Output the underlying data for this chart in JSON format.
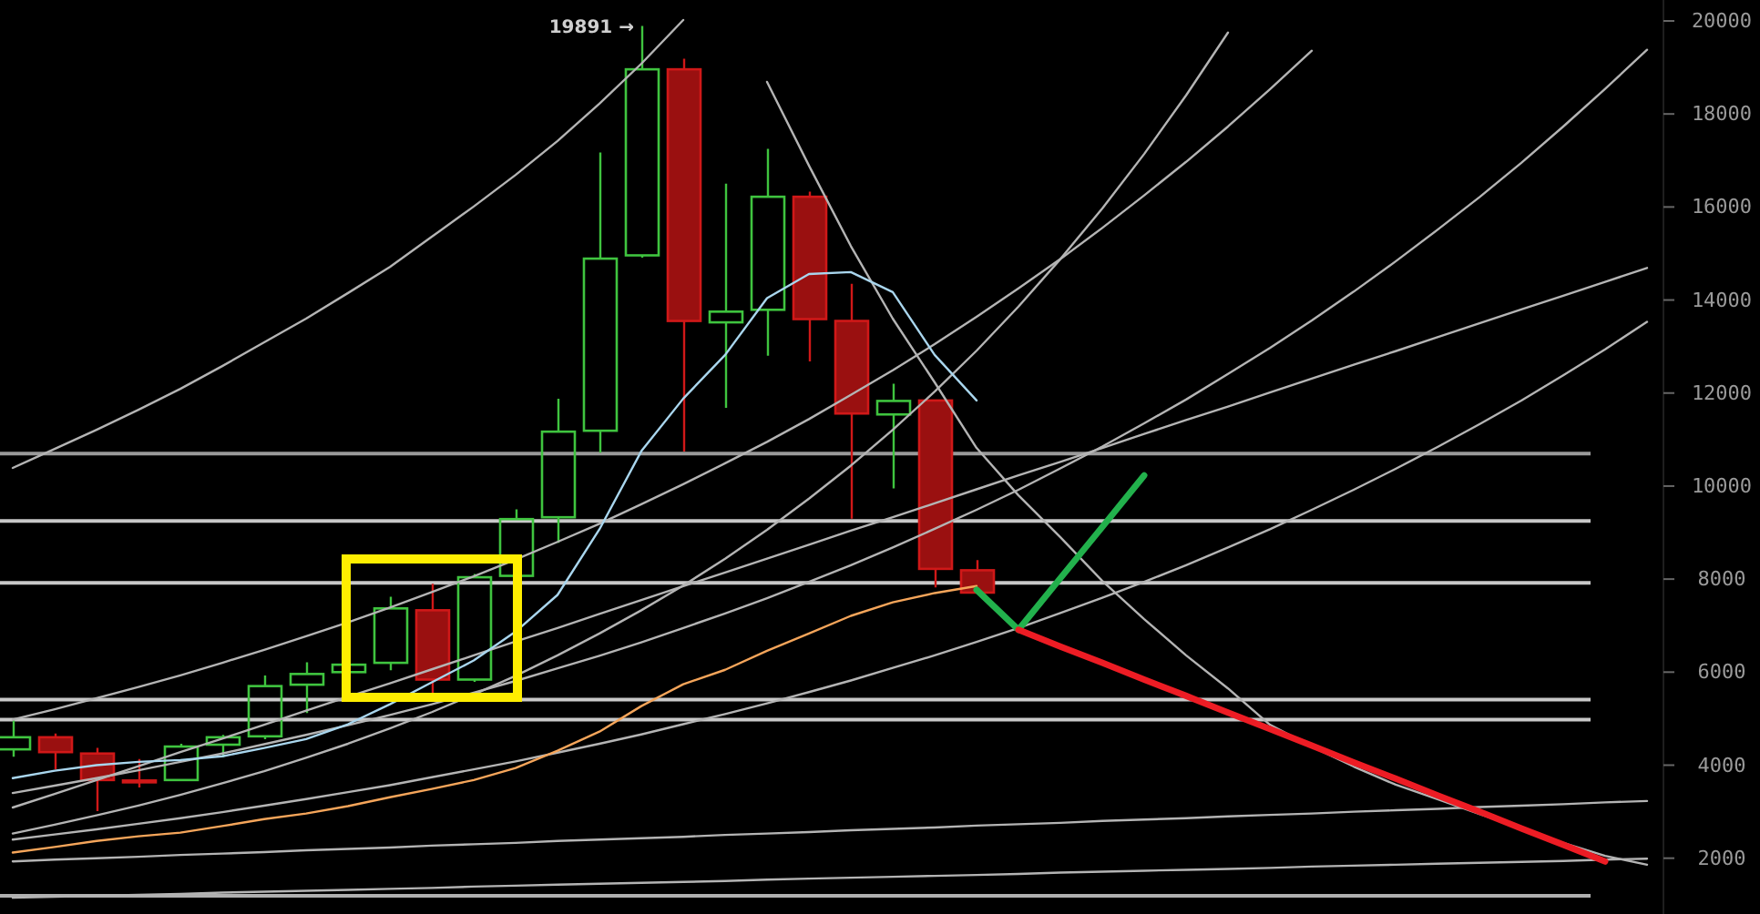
{
  "chart_data": {
    "type": "candlestick",
    "categories": [
      null,
      null,
      null,
      null,
      null,
      null,
      null,
      null,
      null,
      null,
      null,
      null,
      null,
      null,
      null,
      null,
      null,
      null,
      null,
      null,
      null,
      null,
      null,
      null,
      null,
      null,
      null,
      null,
      null,
      null,
      null,
      null,
      null,
      null,
      null,
      null,
      null,
      null,
      null,
      null
    ],
    "ohlc": [
      [
        4340,
        4960,
        4180,
        4600
      ],
      [
        4600,
        4680,
        3910,
        4280
      ],
      [
        4250,
        4370,
        3010,
        3680
      ],
      [
        3670,
        4130,
        3520,
        3650
      ],
      [
        3680,
        4460,
        3660,
        4400
      ],
      [
        4440,
        4650,
        4170,
        4600
      ],
      [
        4620,
        5930,
        4560,
        5700
      ],
      [
        5730,
        6210,
        5120,
        5960
      ],
      [
        6000,
        6170,
        5990,
        6160
      ],
      [
        6200,
        7620,
        6040,
        7370
      ],
      [
        7330,
        7900,
        5520,
        5840
      ],
      [
        5840,
        8110,
        5790,
        8040
      ],
      [
        8070,
        9500,
        8050,
        9290
      ],
      [
        9330,
        11880,
        8780,
        11170
      ],
      [
        11190,
        17170,
        10720,
        14890
      ],
      [
        14960,
        19891,
        14910,
        18960
      ],
      [
        18960,
        19190,
        10740,
        13550
      ],
      [
        13520,
        16500,
        11680,
        13750
      ],
      [
        13790,
        17250,
        12800,
        16220
      ],
      [
        16220,
        16330,
        12680,
        13590
      ],
      [
        13550,
        14350,
        9300,
        11560
      ],
      [
        11540,
        12200,
        9950,
        11830
      ],
      [
        11840,
        11860,
        7820,
        8220
      ],
      [
        8190,
        8410,
        7700,
        7710
      ],
      null,
      null,
      null,
      null,
      null,
      null,
      null,
      null,
      null,
      null,
      null,
      null,
      null,
      null,
      null,
      null
    ],
    "series": [
      {
        "type": "line",
        "color": "#b4b4b4",
        "values": [
          10390,
          10800,
          11210,
          11640,
          12090,
          12580,
          13090,
          13600,
          14150,
          14710,
          15360,
          16010,
          16690,
          17420,
          18220,
          19080,
          20020,
          null,
          null,
          null,
          null,
          null,
          null,
          null,
          null,
          null,
          null,
          null,
          null,
          null,
          null,
          null,
          null,
          null,
          null,
          null,
          null,
          null,
          null,
          null
        ]
      },
      {
        "type": "line",
        "color": "#b4b4b4",
        "values": [
          null,
          null,
          null,
          null,
          null,
          null,
          null,
          null,
          null,
          null,
          null,
          null,
          null,
          null,
          null,
          null,
          null,
          null,
          18690,
          16890,
          15160,
          13600,
          12230,
          10820,
          9800,
          8900,
          7960,
          7140,
          6360,
          5650,
          4870,
          4400,
          3970,
          3580,
          3270,
          2950,
          2640,
          2330,
          2050,
          1860
        ]
      },
      {
        "type": "line",
        "color": "#b4b4b4",
        "values": [
          2530,
          2720,
          2920,
          3130,
          3360,
          3610,
          3870,
          4160,
          4460,
          4790,
          5140,
          5520,
          5920,
          6360,
          6830,
          7330,
          7860,
          8440,
          9060,
          9730,
          10440,
          11210,
          12030,
          12910,
          13860,
          14880,
          15970,
          17140,
          18400,
          19750,
          null,
          null,
          null,
          null,
          null,
          null,
          null,
          null,
          null,
          null
        ]
      },
      {
        "type": "line",
        "color": "#b4b4b4",
        "values": [
          4980,
          5200,
          5440,
          5680,
          5930,
          6200,
          6480,
          6770,
          7070,
          7390,
          7720,
          8060,
          8420,
          8800,
          9190,
          9610,
          10040,
          10490,
          10950,
          11440,
          11960,
          12490,
          13050,
          13640,
          14250,
          14880,
          15550,
          16250,
          16970,
          17730,
          18530,
          19360,
          null,
          null,
          null,
          null,
          null,
          null,
          null,
          null
        ]
      },
      {
        "type": "line",
        "color": "#b4b4b4",
        "values": [
          3400,
          3560,
          3720,
          3890,
          4070,
          4250,
          4450,
          4650,
          4860,
          5080,
          5310,
          5560,
          5810,
          6080,
          6350,
          6640,
          6950,
          7260,
          7590,
          7940,
          8300,
          8680,
          9080,
          9490,
          9920,
          10380,
          10850,
          11350,
          11860,
          12410,
          12970,
          13560,
          14180,
          14830,
          15510,
          16210,
          16950,
          17730,
          18540,
          19380
        ]
      },
      {
        "type": "line",
        "color": "#b4b4b4",
        "values": [
          3090,
          3380,
          3680,
          3980,
          4280,
          4570,
          4870,
          5170,
          5470,
          5760,
          6060,
          6360,
          6660,
          6950,
          7250,
          7550,
          7850,
          8140,
          8440,
          8740,
          9040,
          9330,
          9630,
          9930,
          10230,
          10520,
          10820,
          11120,
          11420,
          11710,
          12010,
          12310,
          12610,
          12900,
          13200,
          13500,
          13800,
          14090,
          14390,
          14690
        ]
      },
      {
        "type": "line",
        "color": "#b4b4b4",
        "values": [
          2400,
          2510,
          2620,
          2740,
          2860,
          2990,
          3130,
          3270,
          3420,
          3570,
          3740,
          3910,
          4080,
          4270,
          4460,
          4660,
          4880,
          5100,
          5330,
          5570,
          5820,
          6090,
          6360,
          6650,
          6950,
          7270,
          7600,
          7940,
          8300,
          8680,
          9070,
          9490,
          9920,
          10370,
          10840,
          11330,
          11840,
          12380,
          12940,
          13530
        ]
      },
      {
        "type": "line",
        "color": "#b4b4b4",
        "values": [
          1930,
          1970,
          2000,
          2030,
          2070,
          2100,
          2130,
          2170,
          2200,
          2230,
          2270,
          2300,
          2330,
          2370,
          2400,
          2430,
          2460,
          2500,
          2530,
          2560,
          2600,
          2630,
          2660,
          2700,
          2730,
          2760,
          2800,
          2830,
          2860,
          2900,
          2930,
          2960,
          3000,
          3030,
          3060,
          3100,
          3130,
          3160,
          3200,
          3230
        ]
      },
      {
        "type": "line",
        "color": "#b4b4b4",
        "values": [
          1150,
          1170,
          1190,
          1210,
          1230,
          1260,
          1280,
          1300,
          1320,
          1340,
          1360,
          1390,
          1410,
          1430,
          1450,
          1470,
          1490,
          1510,
          1540,
          1560,
          1580,
          1600,
          1620,
          1640,
          1660,
          1690,
          1710,
          1730,
          1750,
          1770,
          1790,
          1820,
          1840,
          1860,
          1880,
          1900,
          1920,
          1940,
          1970,
          1990
        ]
      },
      {
        "type": "line",
        "color": "#a9d6ee",
        "values": [
          3720,
          3880,
          4000,
          4070,
          4110,
          4190,
          4370,
          4560,
          4880,
          5310,
          5780,
          6250,
          6870,
          7660,
          9070,
          10750,
          11880,
          12820,
          14040,
          14560,
          14600,
          14170,
          12820,
          11840,
          null,
          null,
          null,
          null,
          null,
          null,
          null,
          null,
          null,
          null,
          null,
          null,
          null,
          null,
          null,
          null
        ]
      },
      {
        "type": "line",
        "color": "#f5a55a",
        "values": [
          2120,
          2240,
          2370,
          2470,
          2550,
          2690,
          2840,
          2960,
          3120,
          3310,
          3490,
          3680,
          3940,
          4310,
          4720,
          5270,
          5740,
          6050,
          6460,
          6830,
          7210,
          7500,
          7700,
          7850,
          null,
          null,
          null,
          null,
          null,
          null,
          null,
          null,
          null,
          null,
          null,
          null,
          null,
          null,
          null,
          null
        ]
      },
      {
        "type": "line",
        "color": "#22b14c",
        "values": [
          null,
          null,
          null,
          null,
          null,
          null,
          null,
          null,
          null,
          null,
          null,
          null,
          null,
          null,
          null,
          null,
          null,
          null,
          null,
          null,
          null,
          null,
          null,
          7770,
          6910,
          8020,
          9120,
          10230,
          null,
          null,
          null,
          null,
          null,
          null,
          null,
          null,
          null,
          null,
          null,
          null
        ]
      },
      {
        "type": "line",
        "color": "#ed1c24",
        "values": [
          null,
          null,
          null,
          null,
          null,
          null,
          null,
          null,
          null,
          null,
          null,
          null,
          null,
          null,
          null,
          null,
          null,
          null,
          null,
          null,
          null,
          null,
          null,
          null,
          6910,
          6550,
          6200,
          5840,
          5490,
          5130,
          4780,
          4420,
          4060,
          3710,
          3350,
          3000,
          2640,
          2290,
          1930,
          null
        ]
      }
    ],
    "ylim": [
      800,
      20450
    ],
    "yticks": [
      2000,
      4000,
      6000,
      8000,
      10000,
      12000,
      14000,
      16000,
      18000,
      20000
    ],
    "tick_labels": "y",
    "ref_lines": [
      {
        "axis": "y",
        "value": 10700,
        "color": "#9a9a9a"
      },
      {
        "axis": "y",
        "value": 9250,
        "color": "#c8c8c8"
      },
      {
        "axis": "y",
        "value": 7920,
        "color": "#c8c8c8"
      },
      {
        "axis": "y",
        "value": 5410,
        "color": "#c8c8c8"
      },
      {
        "axis": "y",
        "value": 4980,
        "color": "#c8c8c8"
      },
      {
        "axis": "y",
        "value": 1190,
        "color": "#b0b0b0"
      }
    ],
    "annotations": [
      "19891 →"
    ]
  }
}
